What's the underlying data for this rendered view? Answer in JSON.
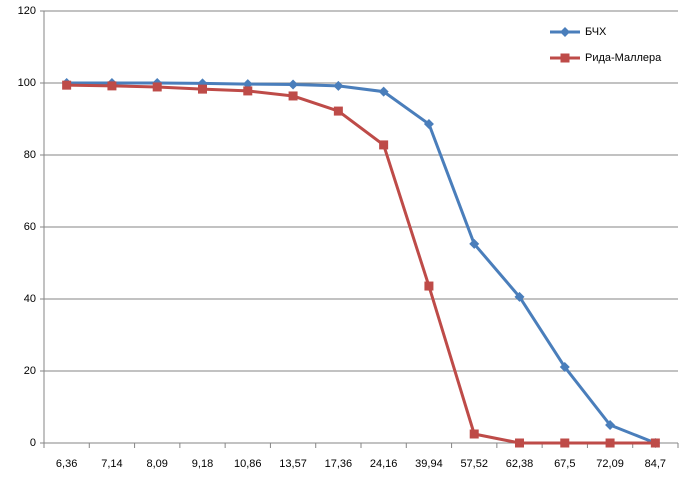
{
  "chart_data": {
    "type": "line",
    "categories": [
      "6,36",
      "7,14",
      "8,09",
      "9,18",
      "10,86",
      "13,57",
      "17,36",
      "24,16",
      "39,94",
      "57,52",
      "62,38",
      "67,5",
      "72,09",
      "84,7"
    ],
    "series": [
      {
        "name": "БЧХ",
        "color": "#4a7ebb",
        "marker": "diamond",
        "values": [
          100,
          100,
          100,
          99.9,
          99.7,
          99.6,
          99.2,
          97.6,
          88.6,
          55.3,
          40.6,
          21.1,
          5,
          0
        ]
      },
      {
        "name": "Рида-Маллера",
        "color": "#be4b48",
        "marker": "square",
        "values": [
          99.4,
          99.2,
          98.9,
          98.3,
          97.8,
          96.4,
          92.2,
          82.8,
          43.6,
          2.5,
          0,
          0,
          0,
          0
        ]
      }
    ],
    "ylim": [
      0,
      120
    ],
    "yticks": [
      0,
      20,
      40,
      60,
      80,
      100,
      120
    ],
    "grid": true,
    "legend": "top-right"
  }
}
